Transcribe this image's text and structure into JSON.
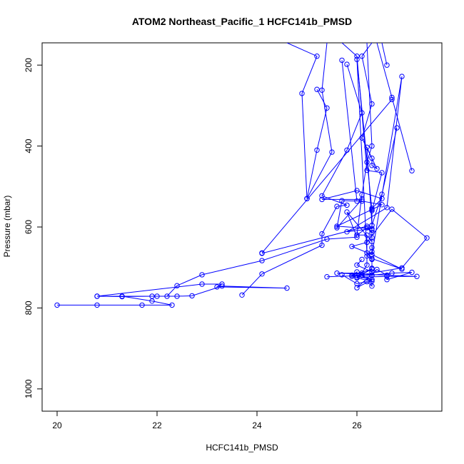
{
  "chart_data": {
    "type": "line",
    "title": "ATOM2 Northeast_Pacific_1 HCFC141b_PMSD",
    "xlabel": "HCFC141b_PMSD",
    "ylabel": "Pressure (mbar)",
    "xlim": [
      19.7,
      27.7
    ],
    "ylim": [
      1055,
      145
    ],
    "y_reversed": true,
    "x_ticks": [
      20,
      22,
      24,
      26
    ],
    "y_ticks": [
      200,
      400,
      600,
      800,
      1000
    ],
    "grid": false,
    "color": "#0000ff",
    "series": [
      {
        "points": [
          [
            20.0,
            793
          ],
          [
            20.8,
            793
          ],
          [
            21.7,
            793
          ],
          [
            22.3,
            793
          ],
          [
            21.9,
            783
          ],
          [
            21.3,
            771
          ],
          [
            20.8,
            771
          ],
          [
            21.3,
            772
          ],
          [
            21.9,
            771
          ],
          [
            22.2,
            771
          ],
          [
            22.4,
            745
          ],
          [
            22.9,
            718
          ],
          [
            24.1,
            683
          ],
          [
            25.4,
            630
          ],
          [
            26.0,
            625
          ],
          [
            25.8,
            563
          ],
          [
            26.3,
            636
          ],
          [
            26.3,
            554
          ],
          [
            26.5,
            530
          ],
          [
            26.0,
            510
          ],
          [
            25.3,
            532
          ],
          [
            26.1,
            532
          ],
          [
            25.6,
            602
          ],
          [
            25.7,
            535
          ],
          [
            26.1,
            536
          ],
          [
            26.5,
            545
          ],
          [
            25.6,
            598
          ],
          [
            26.3,
            604
          ],
          [
            25.8,
            612
          ],
          [
            26.6,
            552
          ],
          [
            26.9,
            228
          ],
          [
            26.3,
            669
          ],
          [
            26.3,
            557
          ],
          [
            26.0,
            186
          ],
          [
            26.2,
            664
          ],
          [
            26.3,
            678
          ],
          [
            26.9,
            704
          ],
          [
            26.3,
            668
          ],
          [
            25.9,
            648
          ],
          [
            26.2,
            638
          ],
          [
            26.7,
            556
          ],
          [
            27.4,
            627
          ],
          [
            26.9,
            701
          ],
          [
            25.9,
            722
          ],
          [
            26.0,
            711
          ],
          [
            26.0,
            720
          ]
        ]
      },
      {
        "points": [
          [
            24.1,
            665
          ],
          [
            26.2,
            598
          ],
          [
            26.3,
            614
          ],
          [
            26.2,
            602
          ],
          [
            26.0,
            620
          ],
          [
            26.2,
            620
          ],
          [
            26.2,
            694
          ],
          [
            26.1,
            714
          ],
          [
            25.6,
            714
          ],
          [
            27.2,
            722
          ],
          [
            26.6,
            722
          ],
          [
            26.0,
            724
          ],
          [
            26.3,
            704
          ],
          [
            25.9,
            719
          ],
          [
            26.3,
            730
          ],
          [
            26.1,
            720
          ]
        ]
      },
      {
        "points": [
          [
            20.8,
            771
          ],
          [
            22.9,
            741
          ],
          [
            23.3,
            741
          ],
          [
            23.2,
            748
          ],
          [
            24.6,
            751
          ],
          [
            23.3,
            746
          ],
          [
            22.7,
            770
          ],
          [
            22.4,
            771
          ],
          [
            22.0,
            771
          ],
          [
            21.3,
            771
          ]
        ]
      },
      {
        "points": [
          [
            23.7,
            768
          ],
          [
            24.1,
            716
          ],
          [
            25.3,
            645
          ],
          [
            25.3,
            617
          ],
          [
            25.6,
            549
          ],
          [
            25.8,
            546
          ],
          [
            25.3,
            523
          ],
          [
            25.8,
            410
          ],
          [
            26.1,
            318
          ],
          [
            25.8,
            198
          ]
        ]
      },
      {
        "points": [
          [
            25.0,
            530
          ],
          [
            25.2,
            410
          ],
          [
            25.4,
            306
          ],
          [
            25.2,
            260
          ]
        ]
      },
      {
        "points": [
          [
            25.0,
            530
          ],
          [
            24.9,
            270
          ],
          [
            25.2,
            178
          ],
          [
            24.6,
            145
          ]
        ]
      },
      {
        "points": [
          [
            25.0,
            530
          ],
          [
            25.5,
            415
          ],
          [
            25.3,
            262
          ],
          [
            25.4,
            145
          ]
        ]
      },
      {
        "points": [
          [
            26.7,
            285
          ],
          [
            24.1,
            664
          ]
        ]
      },
      {
        "points": [
          [
            25.7,
            718
          ],
          [
            26.0,
            740
          ],
          [
            26.2,
            735
          ],
          [
            26.3,
            746
          ],
          [
            26.3,
            730
          ],
          [
            26.0,
            750
          ],
          [
            26.4,
            705
          ],
          [
            26.6,
            719
          ],
          [
            26.6,
            730
          ],
          [
            27.1,
            712
          ],
          [
            26.7,
            714
          ],
          [
            26.3,
            719
          ],
          [
            25.4,
            723
          ]
        ]
      },
      {
        "points": [
          [
            26.1,
            680
          ],
          [
            26.0,
            694
          ],
          [
            26.3,
            711
          ],
          [
            26.3,
            719
          ],
          [
            26.3,
            734
          ],
          [
            26.0,
            726
          ],
          [
            26.1,
            718
          ],
          [
            26.3,
            702
          ],
          [
            26.3,
            680
          ],
          [
            26.2,
            672
          ],
          [
            26.3,
            661
          ],
          [
            26.3,
            651
          ],
          [
            26.3,
            626
          ],
          [
            26.3,
            596
          ],
          [
            26.2,
            403
          ],
          [
            26.3,
            430
          ],
          [
            26.3,
            448
          ],
          [
            26.4,
            456
          ],
          [
            26.1,
            380
          ],
          [
            26.3,
            296
          ],
          [
            26.1,
            178
          ],
          [
            26.3,
            145
          ]
        ]
      },
      {
        "points": [
          [
            26.6,
            200
          ],
          [
            26.5,
            145
          ]
        ]
      },
      {
        "points": [
          [
            26.8,
            355
          ],
          [
            26.5,
            519
          ],
          [
            26.3,
            596
          ]
        ]
      },
      {
        "points": [
          [
            27.1,
            461
          ],
          [
            26.7,
            280
          ],
          [
            26.4,
            145
          ]
        ]
      },
      {
        "points": [
          [
            26.3,
            608
          ],
          [
            26.3,
            560
          ],
          [
            26.5,
            466
          ],
          [
            26.2,
            460
          ],
          [
            26.0,
            178
          ],
          [
            25.7,
            145
          ]
        ]
      },
      {
        "points": [
          [
            26.0,
            620
          ],
          [
            26.1,
            520
          ],
          [
            26.2,
            440
          ],
          [
            26.3,
            400
          ],
          [
            26.2,
            145
          ]
        ]
      },
      {
        "points": [
          [
            25.7,
            188
          ],
          [
            26.0,
            536
          ]
        ]
      }
    ]
  }
}
